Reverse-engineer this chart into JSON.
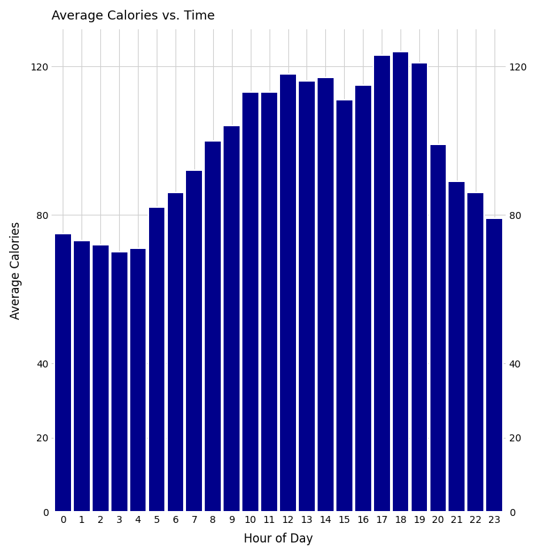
{
  "title": "Average Calories vs. Time",
  "xlabel": "Hour of Day",
  "ylabel": "Average Calories",
  "bar_color": "#00008B",
  "background_color": "#ffffff",
  "grid_color": "#d0d0d0",
  "hours": [
    0,
    1,
    2,
    3,
    4,
    5,
    6,
    7,
    8,
    9,
    10,
    11,
    12,
    13,
    14,
    15,
    16,
    17,
    18,
    19,
    20,
    21,
    22,
    23
  ],
  "calories": [
    75,
    73,
    72,
    70,
    71,
    82,
    86,
    92,
    100,
    104,
    113,
    113,
    118,
    116,
    117,
    111,
    115,
    123,
    124,
    121,
    99,
    89,
    86,
    79
  ],
  "ylim": [
    0,
    130
  ],
  "yticks": [
    0,
    20,
    40,
    80,
    120
  ],
  "title_fontsize": 13,
  "axis_label_fontsize": 12,
  "tick_fontsize": 10,
  "bar_width": 0.92,
  "edge_color": "white",
  "edge_linewidth": 1.5
}
